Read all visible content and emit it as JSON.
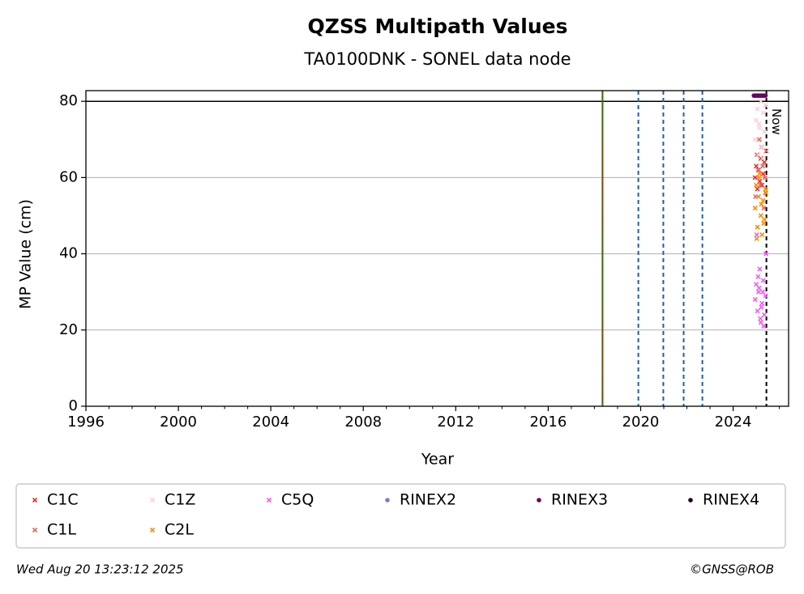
{
  "chart_data": {
    "type": "scatter",
    "title": "QZSS Multipath Values",
    "subtitle": "TA0100DNK - SONEL data node",
    "x_label": "Year",
    "y_label": "MP Value (cm)",
    "xlim": [
      1996,
      2026.4
    ],
    "ylim": [
      0,
      82.8
    ],
    "xticks": [
      1996,
      2000,
      2004,
      2008,
      2012,
      2016,
      2020,
      2024
    ],
    "xminorticks": [
      1997,
      1998,
      1999,
      2001,
      2002,
      2003,
      2005,
      2006,
      2007,
      2009,
      2010,
      2011,
      2013,
      2014,
      2015,
      2017,
      2018,
      2019,
      2021,
      2022,
      2023,
      2025,
      2026
    ],
    "yticks": [
      0,
      20,
      40,
      60,
      80
    ],
    "grid": true,
    "hlines": [
      {
        "y": 80,
        "color": "#000000"
      }
    ],
    "vlines": [
      {
        "x": 2018.35,
        "color": "#008000",
        "style": "solid"
      },
      {
        "x": 2018.35,
        "color": "#d62728",
        "style": "dotted"
      },
      {
        "x": 2019.9,
        "color": "#1f5fa8",
        "style": "dashed"
      },
      {
        "x": 2020.98,
        "color": "#1f5fa8",
        "style": "dashed"
      },
      {
        "x": 2021.86,
        "color": "#1f5fa8",
        "style": "dashed"
      },
      {
        "x": 2022.67,
        "color": "#1f5fa8",
        "style": "dashed"
      },
      {
        "x": 2025.44,
        "color": "#000000",
        "style": "dashed",
        "label": "Now"
      }
    ],
    "series": [
      {
        "name": "C1C",
        "color": "#e8312a",
        "marker": "x",
        "x": [
          2024.95,
          2025.0,
          2025.05,
          2025.1,
          2025.15,
          2025.2,
          2025.25,
          2025.3,
          2025.35,
          2025.4
        ],
        "values": [
          60,
          63,
          57,
          62,
          59,
          65,
          58,
          61,
          64,
          56
        ]
      },
      {
        "name": "C1L",
        "color": "#f26060",
        "marker": "x",
        "x": [
          2024.97,
          2025.03,
          2025.08,
          2025.13,
          2025.18,
          2025.23,
          2025.28,
          2025.33,
          2025.38,
          2025.43
        ],
        "values": [
          55,
          66,
          62,
          70,
          58,
          68,
          63,
          52,
          60,
          67
        ]
      },
      {
        "name": "C1Z",
        "color": "#ffd0d8",
        "marker": "x",
        "x": [
          2024.95,
          2025.0,
          2025.05,
          2025.1,
          2025.15,
          2025.2,
          2025.25,
          2025.3,
          2025.35,
          2025.4,
          2025.12,
          2025.27
        ],
        "values": [
          70,
          75,
          78,
          66,
          73,
          80,
          68,
          77,
          72,
          79,
          74,
          65
        ]
      },
      {
        "name": "C5Q",
        "color": "#ff55ff",
        "marker": "x",
        "x": [
          2024.95,
          2025.0,
          2025.05,
          2025.1,
          2025.15,
          2025.2,
          2025.25,
          2025.3,
          2025.35,
          2025.4,
          2025.02,
          2025.12,
          2025.22,
          2025.32,
          2025.42,
          2025.08,
          2025.18,
          2025.28
        ],
        "values": [
          28,
          32,
          25,
          30,
          36,
          22,
          27,
          33,
          24,
          29,
          45,
          31,
          26,
          21,
          40,
          34,
          23,
          30
        ]
      },
      {
        "name": "C2L",
        "color": "#ff8c00",
        "marker": "x",
        "x": [
          2024.95,
          2025.0,
          2025.05,
          2025.1,
          2025.15,
          2025.2,
          2025.25,
          2025.3,
          2025.35,
          2025.4,
          2025.02,
          2025.12,
          2025.22,
          2025.32,
          2025.42
        ],
        "values": [
          52,
          58,
          47,
          55,
          61,
          50,
          45,
          54,
          49,
          57,
          44,
          60,
          53,
          48,
          56
        ]
      },
      {
        "name": "RINEX2",
        "color": "#8878c0",
        "marker": "o",
        "x": [],
        "values": []
      },
      {
        "name": "RINEX3",
        "color": "#6a0060",
        "marker": "o",
        "x": [
          2024.9,
          2024.95,
          2025.0,
          2025.05,
          2025.1,
          2025.15,
          2025.2,
          2025.25,
          2025.3,
          2025.35,
          2025.4
        ],
        "values": [
          81.5,
          81.5,
          81.5,
          81.5,
          81.5,
          81.5,
          81.5,
          81.5,
          81.5,
          81.5,
          81.5
        ]
      },
      {
        "name": "RINEX4",
        "color": "#200020",
        "marker": "o",
        "x": [],
        "values": []
      }
    ],
    "footer_left": "Wed Aug 20 13:23:12 2025",
    "footer_right": "©GNSS@ROB"
  }
}
